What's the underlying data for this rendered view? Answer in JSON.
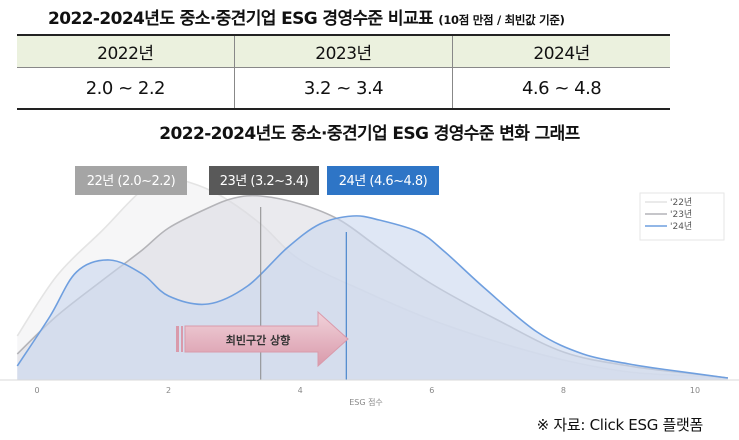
{
  "table_title": "2022-2024년도 중소·중견기업 ESG 경영수준 비교표",
  "table_title_note": "(10점 만점 / 최빈값 기준)",
  "table": {
    "headers": [
      "2022년",
      "2023년",
      "2024년"
    ],
    "values": [
      "2.0 ~ 2.2",
      "3.2 ~ 3.4",
      "4.6 ~ 4.8"
    ]
  },
  "chart_title": "2022-2024년도 중소·중견기업 ESG 경영수준 변화 그래프",
  "source_note": "※ 자료: Click ESG 플랫폼",
  "chart_data": {
    "type": "area",
    "xlabel": "ESG 점수",
    "ylabel": "",
    "xlim": [
      -0.3,
      10.5
    ],
    "xticks": [
      0,
      2,
      4,
      6,
      8,
      10
    ],
    "grid": false,
    "legend_position": "top-right",
    "series": [
      {
        "name": "'22년",
        "color": "#e4e4e4",
        "fill": "#f5f5f6",
        "x": [
          -0.3,
          0.3,
          1.0,
          1.6,
          2.0,
          2.3,
          2.8,
          3.4,
          4.0,
          5.0,
          6.0,
          7.0,
          8.0,
          9.0,
          10.0,
          10.5
        ],
        "y": [
          0.22,
          0.52,
          0.75,
          0.95,
          1.0,
          0.99,
          0.92,
          0.78,
          0.6,
          0.44,
          0.3,
          0.19,
          0.1,
          0.04,
          0.02,
          0.01
        ]
      },
      {
        "name": "'23년",
        "color": "#b4b4b8",
        "fill": "#dcdce3",
        "x": [
          -0.3,
          0.3,
          1.0,
          1.6,
          2.0,
          2.6,
          3.0,
          3.4,
          4.0,
          4.6,
          5.2,
          6.0,
          7.0,
          8.0,
          9.0,
          10.0,
          10.5
        ],
        "y": [
          0.13,
          0.32,
          0.5,
          0.65,
          0.76,
          0.86,
          0.91,
          0.92,
          0.88,
          0.8,
          0.66,
          0.48,
          0.3,
          0.14,
          0.07,
          0.03,
          0.01
        ]
      },
      {
        "name": "'24년",
        "color": "#6f9fdf",
        "fill": "#c9d7ee",
        "x": [
          -0.3,
          0.2,
          0.6,
          1.1,
          1.6,
          2.0,
          2.6,
          3.2,
          3.8,
          4.3,
          4.8,
          5.2,
          5.8,
          6.2,
          6.8,
          7.6,
          8.3,
          9.0,
          9.6,
          10.5
        ],
        "y": [
          0.07,
          0.32,
          0.54,
          0.6,
          0.53,
          0.42,
          0.38,
          0.47,
          0.66,
          0.78,
          0.82,
          0.8,
          0.74,
          0.64,
          0.46,
          0.24,
          0.13,
          0.08,
          0.05,
          0.01
        ]
      }
    ],
    "annotations": [
      {
        "text": "22년 (2.0~2.2)",
        "color": "#a5a5a5"
      },
      {
        "text": "23년 (3.2~3.4)",
        "color": "#595959"
      },
      {
        "text": "24년 (4.6~4.8)",
        "color": "#2e75c6"
      },
      {
        "text": "최빈구간 상향",
        "color": "#e7b7c4"
      }
    ],
    "mode_lines": [
      3.4,
      4.7
    ]
  }
}
